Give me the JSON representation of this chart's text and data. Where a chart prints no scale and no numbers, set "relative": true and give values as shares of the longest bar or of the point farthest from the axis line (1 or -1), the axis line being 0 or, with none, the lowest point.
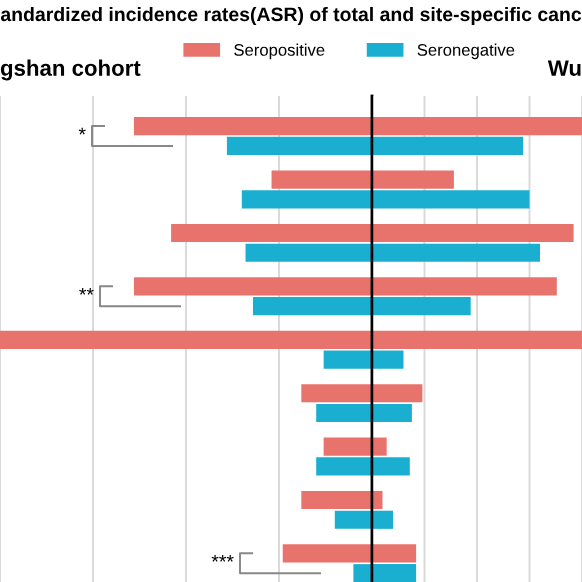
{
  "chart_data": [
    {
      "type": "bar",
      "orientation": "horizontal",
      "relative": true,
      "title": "andardized incidence rates(ASR) of total and site-specific canc",
      "categories": [
        null,
        null,
        null,
        null,
        null,
        null,
        null,
        null,
        null
      ],
      "series": [
        {
          "name": "Seropositive",
          "color": "#e8736c",
          "values": [
            -0.64,
            -0.27,
            -0.54,
            -0.64,
            -1,
            -0.19,
            -0.13,
            -0.19,
            -0.24
          ]
        },
        {
          "name": "Seronegative",
          "color": "#1aafd0",
          "values": [
            -0.39,
            -0.35,
            -0.34,
            -0.32,
            -0.13,
            -0.15,
            -0.15,
            -0.1,
            -0.05
          ]
        }
      ],
      "annotations": [
        "gshan cohort",
        "*",
        "**",
        "***"
      ],
      "grid": "x",
      "legend": "top"
    },
    {
      "type": "bar",
      "orientation": "horizontal",
      "relative": true,
      "categories": [
        null,
        null,
        null,
        null,
        null,
        null,
        null,
        null,
        null
      ],
      "series": [
        {
          "color": "#e8736c",
          "values": [
            1,
            0.39,
            0.96,
            0.88,
            1,
            0.24,
            0.07,
            0.05,
            0.21
          ]
        },
        {
          "color": "#1aafd0",
          "values": [
            0.72,
            0.75,
            0.8,
            0.47,
            0.15,
            0.19,
            0.18,
            0.1,
            0.21
          ]
        }
      ],
      "annotations": [
        "Wu"
      ],
      "grid": "x"
    }
  ]
}
